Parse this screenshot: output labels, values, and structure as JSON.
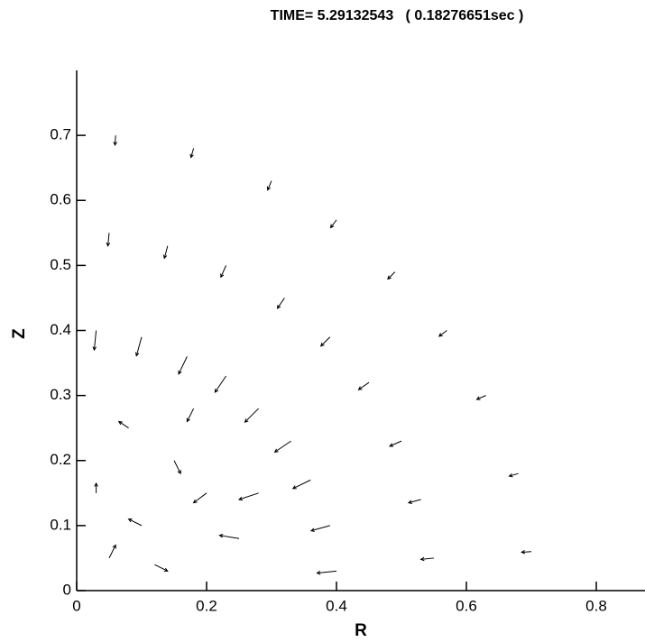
{
  "chart_data": {
    "type": "quiver",
    "title": "TIME= 5.29132543   ( 0.18276651sec )",
    "x_label": "R",
    "y_label": "Z",
    "xlim": [
      0,
      0.875
    ],
    "ylim": [
      0,
      0.8
    ],
    "xticks": [
      0,
      0.2,
      0.4,
      0.6,
      0.8
    ],
    "yticks": [
      0,
      0.1,
      0.2,
      0.3,
      0.4,
      0.5,
      0.6,
      0.7
    ],
    "color": "#000000",
    "x": [
      0.7,
      0.68,
      0.63,
      0.57,
      0.49,
      0.4,
      0.3,
      0.18,
      0.06,
      0.55,
      0.53,
      0.5,
      0.45,
      0.39,
      0.32,
      0.23,
      0.14,
      0.05,
      0.4,
      0.39,
      0.36,
      0.33,
      0.28,
      0.23,
      0.17,
      0.1,
      0.03,
      0.05,
      0.1,
      0.15,
      0.08,
      0.2,
      0.25,
      0.03,
      0.12,
      0.18,
      0.28
    ],
    "y": [
      0.06,
      0.18,
      0.3,
      0.4,
      0.49,
      0.57,
      0.63,
      0.68,
      0.7,
      0.05,
      0.14,
      0.23,
      0.32,
      0.39,
      0.45,
      0.5,
      0.53,
      0.55,
      0.03,
      0.1,
      0.17,
      0.23,
      0.28,
      0.33,
      0.36,
      0.39,
      0.4,
      0.05,
      0.1,
      0.2,
      0.25,
      0.15,
      0.08,
      0.15,
      0.04,
      0.28,
      0.15
    ],
    "u": [
      -0.015,
      -0.014,
      -0.014,
      -0.012,
      -0.011,
      -0.009,
      -0.006,
      -0.004,
      -0.001,
      -0.02,
      -0.019,
      -0.018,
      -0.016,
      -0.014,
      -0.011,
      -0.008,
      -0.005,
      -0.002,
      -0.03,
      -0.029,
      -0.027,
      -0.025,
      -0.021,
      -0.017,
      -0.013,
      -0.008,
      -0.003,
      0.01,
      -0.02,
      0.01,
      -0.015,
      -0.02,
      -0.03,
      0.0,
      0.02,
      -0.01,
      -0.03
    ],
    "v": [
      -0.001,
      -0.004,
      -0.006,
      -0.009,
      -0.011,
      -0.012,
      -0.014,
      -0.014,
      -0.015,
      -0.002,
      -0.005,
      -0.008,
      -0.011,
      -0.014,
      -0.016,
      -0.018,
      -0.019,
      -0.02,
      -0.003,
      -0.008,
      -0.013,
      -0.017,
      -0.021,
      -0.025,
      -0.027,
      -0.029,
      -0.03,
      0.02,
      0.01,
      -0.02,
      0.01,
      -0.015,
      0.005,
      0.015,
      -0.01,
      -0.02,
      -0.01
    ]
  }
}
